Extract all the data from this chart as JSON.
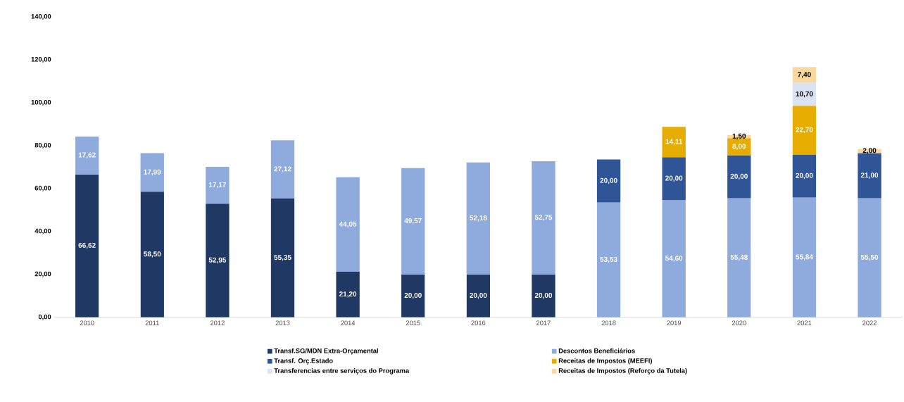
{
  "chart_data": {
    "type": "bar",
    "stacked": true,
    "categories": [
      "2010",
      "2011",
      "2012",
      "2013",
      "2014",
      "2015",
      "2016",
      "2017",
      "2018",
      "2019",
      "2020",
      "2021",
      "2022"
    ],
    "series": [
      {
        "name": "Transf.SG/MDN Extra-Orçamental",
        "color": "#203864",
        "values": [
          66.62,
          58.5,
          52.95,
          55.35,
          21.2,
          20.0,
          20.0,
          20.0,
          null,
          null,
          null,
          null,
          null
        ],
        "value_labels": [
          "66,62",
          "58,50",
          "52,95",
          "55,35",
          "21,20",
          "20,00",
          "20,00",
          "20,00",
          null,
          null,
          null,
          null,
          null
        ]
      },
      {
        "name": "Descontos Beneficiários",
        "color": "#8faadc",
        "values": [
          17.62,
          17.99,
          17.17,
          27.12,
          44.05,
          49.57,
          52.18,
          52.75,
          53.53,
          54.6,
          55.48,
          55.84,
          55.5
        ],
        "value_labels": [
          "17,62",
          "17,99",
          "17,17",
          "27,12",
          "44,05",
          "49,57",
          "52,18",
          "52,75",
          "53,53",
          "54,60",
          "55,48",
          "55,84",
          "55,50"
        ]
      },
      {
        "name": "Transf. Orç.Estado",
        "color": "#2f5597",
        "values": [
          null,
          null,
          null,
          null,
          null,
          null,
          null,
          null,
          20.0,
          20.0,
          20.0,
          20.0,
          21.0
        ],
        "value_labels": [
          null,
          null,
          null,
          null,
          null,
          null,
          null,
          null,
          "20,00",
          "20,00",
          "20,00",
          "20,00",
          "21,00"
        ]
      },
      {
        "name": "Receitas de Impostos (MEEFI)",
        "color": "#e6ad00",
        "values": [
          null,
          null,
          null,
          null,
          null,
          null,
          null,
          null,
          null,
          14.11,
          8.0,
          22.7,
          null
        ],
        "value_labels": [
          null,
          null,
          null,
          null,
          null,
          null,
          null,
          null,
          null,
          "14,11",
          "8,00",
          "22,70",
          null
        ]
      },
      {
        "name": "Transferencias entre serviços do Programa",
        "color": "#dae3f3",
        "values": [
          null,
          null,
          null,
          null,
          null,
          null,
          null,
          null,
          null,
          null,
          null,
          10.7,
          null
        ],
        "value_labels": [
          null,
          null,
          null,
          null,
          null,
          null,
          null,
          null,
          null,
          null,
          null,
          "10,70",
          null
        ]
      },
      {
        "name": "Receitas de Impostos (Reforço da Tutela)",
        "color": "#f9d9a0",
        "values": [
          null,
          null,
          null,
          null,
          null,
          null,
          null,
          null,
          null,
          null,
          1.5,
          7.4,
          2.0
        ],
        "value_labels": [
          null,
          null,
          null,
          null,
          null,
          null,
          null,
          null,
          null,
          null,
          "1,50",
          "7,40",
          "2,00"
        ]
      }
    ],
    "ylim": [
      0,
      140
    ],
    "yticks": [
      {
        "value": 0,
        "label": "0,00"
      },
      {
        "value": 20,
        "label": "20,00"
      },
      {
        "value": 40,
        "label": "40,00"
      },
      {
        "value": 60,
        "label": "60,00"
      },
      {
        "value": 80,
        "label": "80,00"
      },
      {
        "value": 100,
        "label": "100,00"
      },
      {
        "value": 120,
        "label": "120,00"
      },
      {
        "value": 140,
        "label": "140,00"
      }
    ],
    "legend": "bottom",
    "grid": false
  }
}
